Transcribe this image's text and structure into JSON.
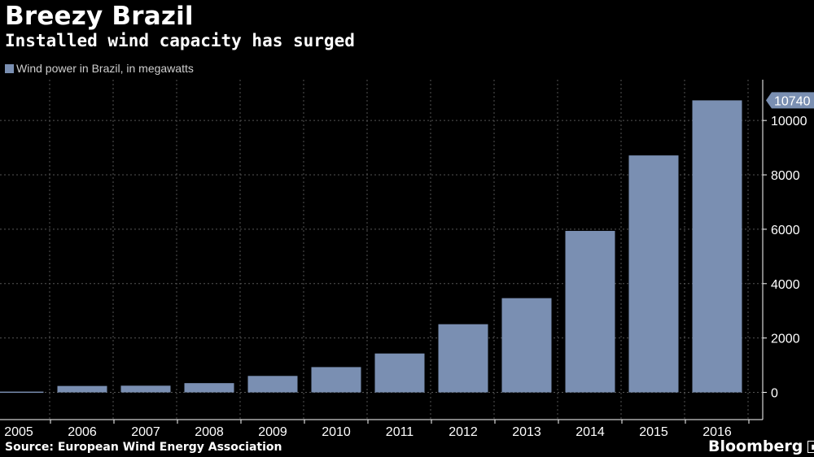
{
  "title": "Breezy Brazil",
  "subtitle": "Installed wind capacity has surged",
  "legend": {
    "label": "Wind power in Brazil, in megawatts"
  },
  "source": "Source: European Wind Energy Association",
  "brand": "Bloomberg",
  "colors": {
    "bar": "#7a8fb2",
    "background": "#000000",
    "grid": "#555555",
    "text": "#ffffff"
  },
  "chart_data": {
    "type": "bar",
    "categories": [
      "2005",
      "2006",
      "2007",
      "2008",
      "2009",
      "2010",
      "2011",
      "2012",
      "2013",
      "2014",
      "2015",
      "2016"
    ],
    "series": [
      {
        "name": "Wind power in Brazil, in megawatts",
        "values": [
          29,
          237,
          247,
          341,
          606,
          931,
          1431,
          2508,
          3466,
          5939,
          8715,
          10740
        ]
      }
    ],
    "ylim": [
      -1000,
      11500
    ],
    "yticks": [
      0,
      2000,
      4000,
      6000,
      8000,
      10000
    ],
    "ytick_labels": [
      "0",
      "2000",
      "4000",
      "6000",
      "8000",
      "10000"
    ],
    "last_value_label": "10740",
    "grid": true,
    "yaxis_position": "right",
    "legend_position": "top-left"
  }
}
